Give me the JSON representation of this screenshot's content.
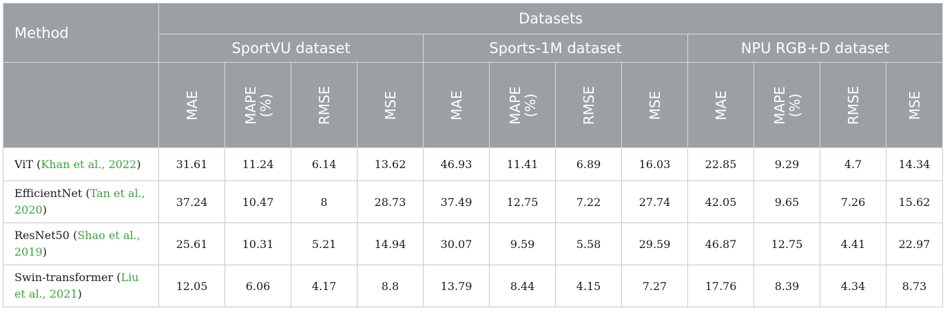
{
  "header": {
    "method": "Method",
    "datasets": "Datasets",
    "groups": [
      "SportVU dataset",
      "Sports-1M dataset",
      "NPU RGB+D dataset"
    ],
    "metrics": [
      "MAE",
      "MAPE\n(%)",
      "RMSE",
      "MSE"
    ]
  },
  "rows": [
    {
      "name": "ViT",
      "cite": "Khan et al., 2022",
      "values": [
        "31.61",
        "11.24",
        "6.14",
        "13.62",
        "46.93",
        "11.41",
        "6.89",
        "16.03",
        "22.85",
        "9.29",
        "4.7",
        "14.34"
      ]
    },
    {
      "name": "EfficientNet",
      "cite": "Tan et al., 2020",
      "values": [
        "37.24",
        "10.47",
        "8",
        "28.73",
        "37.49",
        "12.75",
        "7.22",
        "27.74",
        "42.05",
        "9.65",
        "7.26",
        "15.62"
      ]
    },
    {
      "name": "ResNet50",
      "cite": "Shao et al., 2019",
      "values": [
        "25.61",
        "10.31",
        "5.21",
        "14.94",
        "30.07",
        "9.59",
        "5.58",
        "29.59",
        "46.87",
        "12.75",
        "4.41",
        "22.97"
      ]
    },
    {
      "name": "Swin-transformer",
      "cite": "Liu et al., 2021",
      "values": [
        "12.05",
        "6.06",
        "4.17",
        "8.8",
        "13.79",
        "8.44",
        "4.15",
        "7.27",
        "17.76",
        "8.39",
        "4.34",
        "8.73"
      ]
    }
  ]
}
